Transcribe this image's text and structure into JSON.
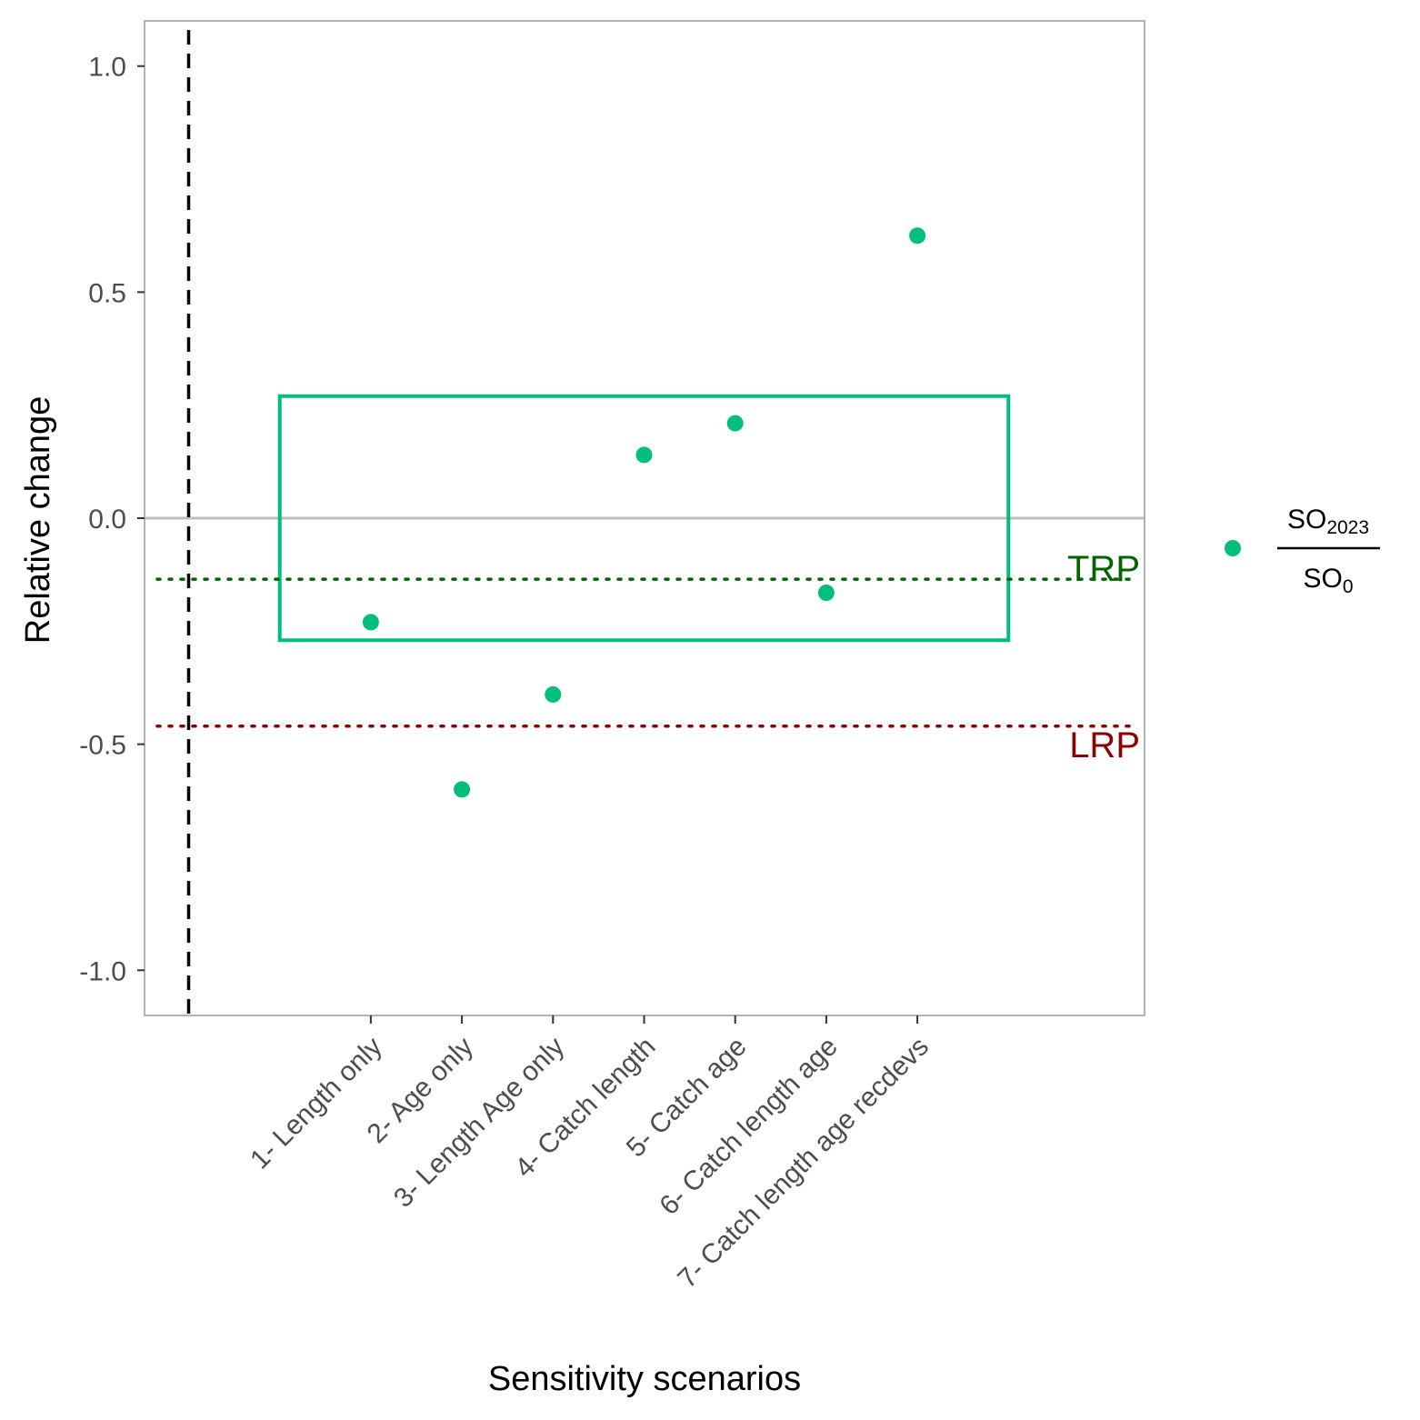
{
  "chart_data": {
    "type": "scatter",
    "xlabel": "Sensitivity scenarios",
    "ylabel": "Relative change",
    "categories": [
      "1- Length only",
      "2- Age only",
      "3- Length Age only",
      "4- Catch length",
      "5- Catch age",
      "6- Catch length age",
      "7- Catch length age recdevs"
    ],
    "series": [
      {
        "values": [
          -0.23,
          -0.6,
          -0.39,
          0.14,
          0.21,
          -0.165,
          0.625
        ],
        "color": "#00BF7D"
      }
    ],
    "ylim": [
      -1.1,
      1.1
    ],
    "yticks": [
      1.0,
      0.5,
      0.0,
      -0.5,
      -1.0
    ],
    "ytick_labels": [
      "1.0",
      "0.5",
      "0.0",
      "-0.5",
      "-1.0"
    ],
    "reference_lines": {
      "zero": {
        "value": 0.0,
        "color": "#BEBEBE"
      },
      "trp": {
        "label": "TRP",
        "value": -0.135,
        "color": "#006400"
      },
      "lrp": {
        "label": "LRP",
        "value": -0.46,
        "color": "#8B0000"
      }
    },
    "vertical_dashed_line": {
      "color": "#000000"
    },
    "band": {
      "ymin": -0.27,
      "ymax": 0.27,
      "color": "#00BF7D"
    },
    "legend": {
      "position": "right",
      "numerator": "SO",
      "numerator_sub": "2023",
      "denominator": "SO",
      "denominator_sub": "0",
      "color": "#00BF7D"
    },
    "grid": false
  }
}
